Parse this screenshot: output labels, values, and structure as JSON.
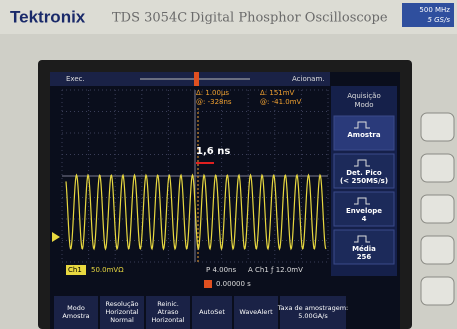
{
  "header": {
    "brand": "Tektronix",
    "model": "TDS 3054C",
    "description": "Digital Phosphor Oscilloscope",
    "bandwidth": "500 MHz",
    "sample_rate": "5 GS/s"
  },
  "status": {
    "run": "Exec.",
    "trigger": "Acionam."
  },
  "cursors": {
    "time_delta": "Δ:  1.00μs",
    "time_at": "@: -328ns",
    "volt_delta": "Δ:  151mV",
    "volt_at": "@: -41.0mV"
  },
  "annotation": "1,6 ns",
  "readouts": {
    "channel": "Ch1",
    "volts": "50.0mVΩ",
    "timebase": "P 4.00ns",
    "trigger": "A  Ch1  ƒ  12.0mV",
    "position": "0.00000 s"
  },
  "side_menu": {
    "title": [
      "Aquisição",
      "Modo"
    ],
    "items": [
      [
        "Amostra"
      ],
      [
        "Det. Pico",
        "(< 250MS/s)"
      ],
      [
        "Envelope",
        "4"
      ],
      [
        "Média",
        "256"
      ]
    ]
  },
  "bottom_menu": [
    [
      "Modo",
      "Amostra"
    ],
    [
      "Resolução",
      "Horizontal",
      "Normal"
    ],
    [
      "Reinic.",
      "Atraso",
      "Horizontal"
    ],
    [
      "AutoSet"
    ],
    [
      "WaveAlert"
    ],
    [
      "Taxa de amostragem:",
      "5.00GA/s"
    ]
  ]
}
